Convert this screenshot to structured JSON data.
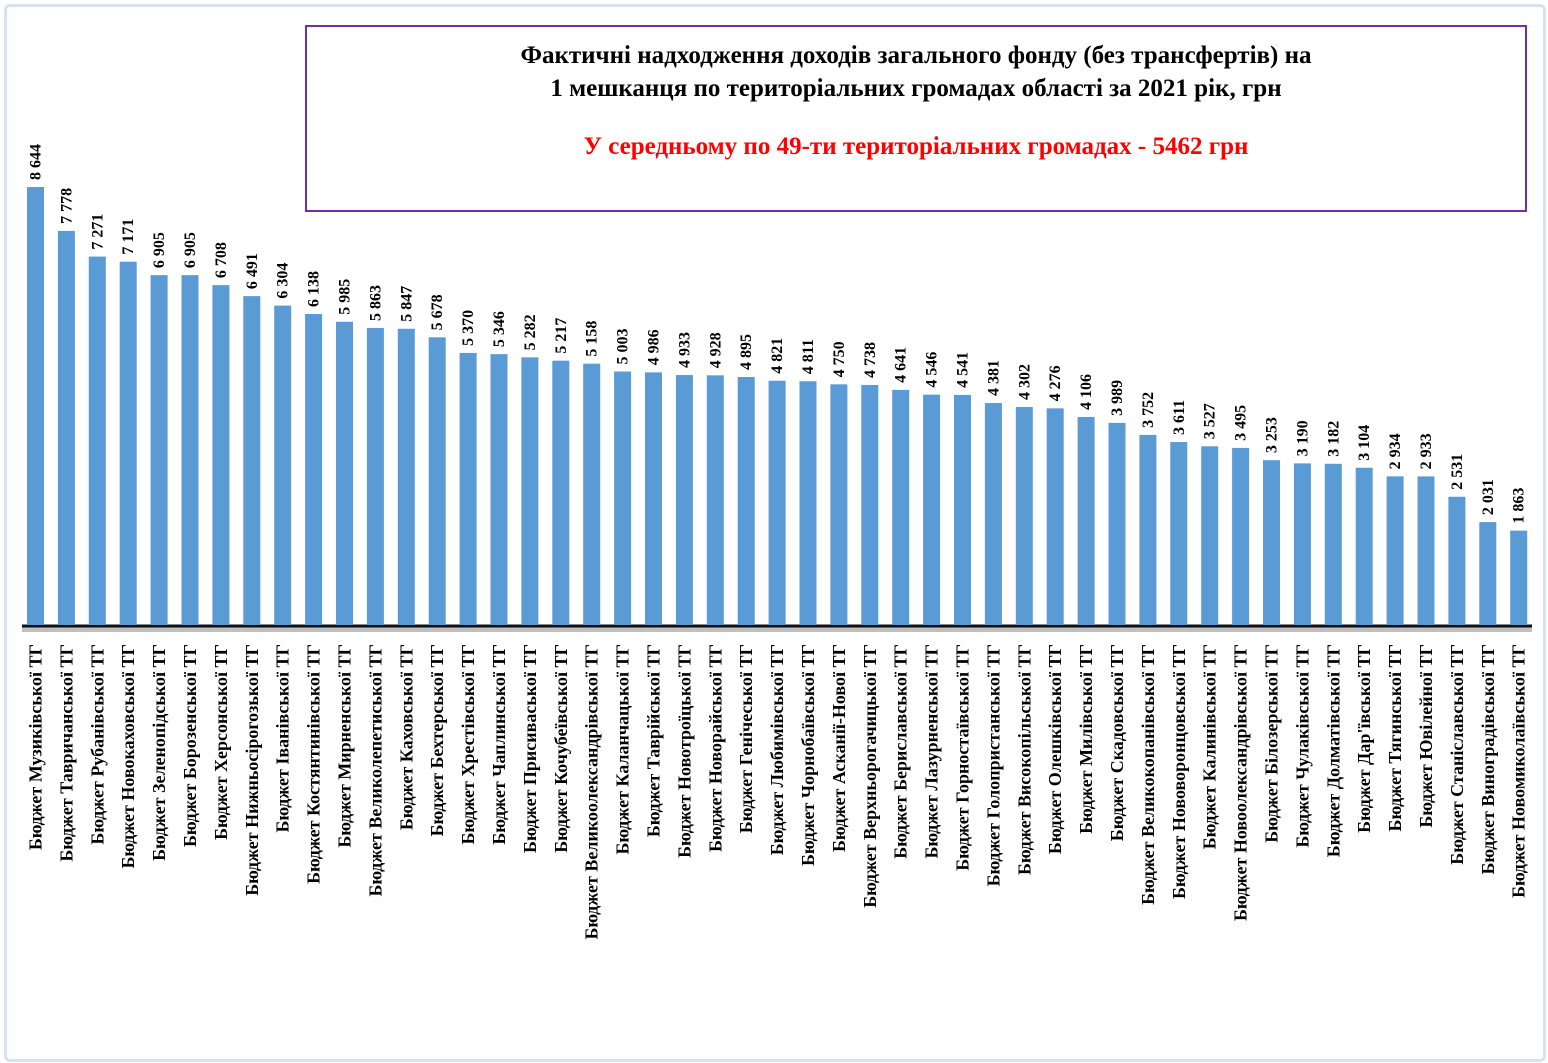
{
  "chart_data": {
    "type": "bar",
    "title": "Фактичні надходження доходів загального фонду (без трансфертів) на 1 мешканця по територіальних громадах області за 2021 рік, грн",
    "title_lines": [
      "Фактичні надходження доходів загального фонду (без трансфертів) на",
      "1 мешканця по територіальних громадах області за 2021 рік, грн"
    ],
    "annotation": "У середньому по 49-ти територіальних громадах - 5462 грн",
    "xlabel": "",
    "ylabel": "",
    "ylim": [
      0,
      12000
    ],
    "grid": false,
    "legend": "none",
    "colors": {
      "bar": "#5b9bd5",
      "title_border": "#7030a0",
      "annotation": "#ff0000"
    },
    "categories": [
      "Бюджет Музиківської ТГ",
      "Бюджет Тавричанської ТГ",
      "Бюджет Рубанівської ТГ",
      "Бюджет Новокаховської ТГ",
      "Бюджет Зеленопідської ТГ",
      "Бюджет Борозенської ТГ",
      "Бюджет Херсонської ТГ",
      "Бюджет Нижньосірогозької ТГ",
      "Бюджет Іванівської ТГ",
      "Бюджет Костянтинівської ТГ",
      "Бюджет Мирненської ТГ",
      "Бюджет Великолепетиської ТГ",
      "Бюджет Каховської ТГ",
      "Бюджет Бехтерської ТГ",
      "Бюджет Хрестівської ТГ",
      "Бюджет Чаплинської ТГ",
      "Бюджет Присиваської ТГ",
      "Бюджет Кочубеївської ТГ",
      "Бюджет Великоолександрівської ТГ",
      "Бюджет Каланчацької ТГ",
      "Бюджет Таврійської ТГ",
      "Бюджет Новотроїцької ТГ",
      "Бюджет Новорайської ТГ",
      "Бюджет Генічеської ТГ",
      "Бюджет Любимівської ТГ",
      "Бюджет Чорнобаївської ТГ",
      "Бюджет Асканії-Нової ТГ",
      "Бюджет Верхньорогачицької ТГ",
      "Бюджет Бериславської ТГ",
      "Бюджет Лазурненської ТГ",
      "Бюджет Горностаївської ТГ",
      "Бюджет Голопристанської ТГ",
      "Бюджет Високопільської ТГ",
      "Бюджет Олешківської ТГ",
      "Бюджет Милівської ТГ",
      "Бюджет Скадовської ТГ",
      "Бюджет Великокопанівської ТГ",
      "Бюджет Нововоронцовської ТГ",
      "Бюджет Калинівської ТГ",
      "Бюджет Новоолександрівської ТГ",
      "Бюджет Білозерської ТГ",
      "Бюджет Чулаківської ТГ",
      "Бюджет Долматівської ТГ",
      "Бюджет Дар'ївської ТГ",
      "Бюджет Тягинської ТГ",
      "Бюджет Ювілейної ТГ",
      "Бюджет Станіславської ТГ",
      "Бюджет Виноградівської ТГ",
      "Бюджет Новомиколаївської ТГ"
    ],
    "values": [
      8644,
      7778,
      7271,
      7171,
      6905,
      6905,
      6708,
      6491,
      6304,
      6138,
      5985,
      5863,
      5847,
      5678,
      5370,
      5346,
      5282,
      5217,
      5158,
      5003,
      4986,
      4933,
      4928,
      4895,
      4821,
      4811,
      4750,
      4738,
      4641,
      4546,
      4541,
      4381,
      4302,
      4276,
      4106,
      3989,
      3752,
      3611,
      3527,
      3495,
      3253,
      3190,
      3182,
      3104,
      2934,
      2933,
      2531,
      2031,
      1863
    ],
    "value_labels": [
      "8 644",
      "7 778",
      "7 271",
      "7 171",
      "6 905",
      "6 905",
      "6 708",
      "6 491",
      "6 304",
      "6 138",
      "5 985",
      "5 863",
      "5 847",
      "5 678",
      "5 370",
      "5 346",
      "5 282",
      "5 217",
      "5 158",
      "5 003",
      "4 986",
      "4 933",
      "4 928",
      "4 895",
      "4 821",
      "4 811",
      "4 750",
      "4 738",
      "4 641",
      "4 546",
      "4 541",
      "4 381",
      "4 302",
      "4 276",
      "4 106",
      "3 989",
      "3 752",
      "3 611",
      "3 527",
      "3 495",
      "3 253",
      "3 190",
      "3 182",
      "3 104",
      "2 934",
      "2 933",
      "2 531",
      "2 031",
      "1 863"
    ]
  }
}
